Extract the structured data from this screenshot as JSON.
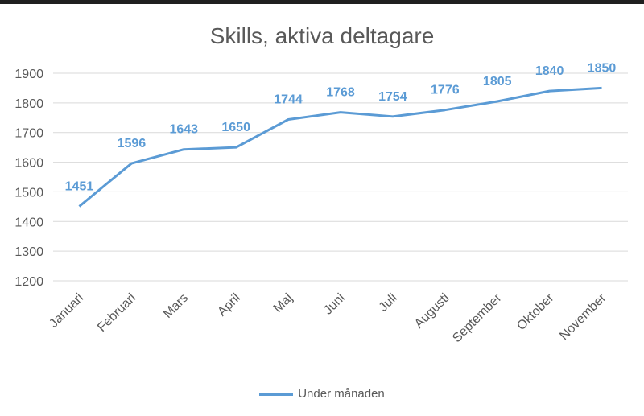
{
  "chart_data": {
    "type": "line",
    "title": "Skills, aktiva deltagare",
    "categories": [
      "Januari",
      "Februari",
      "Mars",
      "April",
      "Maj",
      "Juni",
      "Juli",
      "Augusti",
      "September",
      "Oktober",
      "November"
    ],
    "series": [
      {
        "name": "Under månaden",
        "values": [
          1451,
          1596,
          1643,
          1650,
          1744,
          1768,
          1754,
          1776,
          1805,
          1840,
          1850
        ],
        "color": "#5b9bd5"
      }
    ],
    "ylim": [
      1200,
      1900
    ],
    "yticks": [
      1200,
      1300,
      1400,
      1500,
      1600,
      1700,
      1800,
      1900
    ],
    "grid": true,
    "legend_position": "bottom",
    "data_labels": true,
    "text_color": "#595959",
    "grid_color": "#d9d9d9"
  }
}
